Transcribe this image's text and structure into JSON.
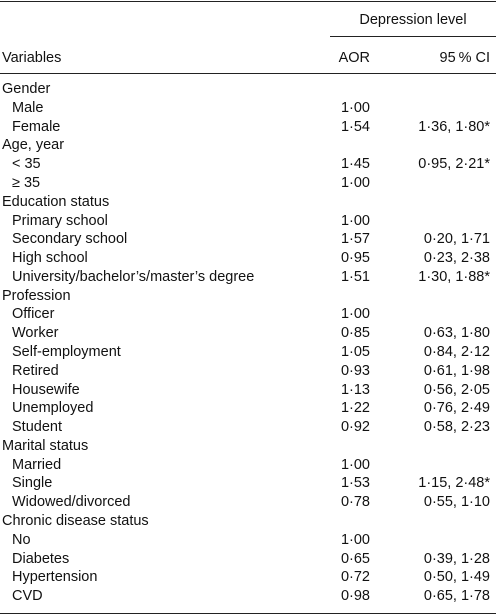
{
  "table": {
    "group_header": "Depression level",
    "columns": [
      "Variables",
      "AOR",
      "95 % CI"
    ],
    "groups": [
      {
        "title": "Gender",
        "rows": [
          [
            "Male",
            "1·00"
          ],
          [
            "Female",
            "1·54",
            "1·36, 1·80*"
          ]
        ]
      },
      {
        "title": "Age, year",
        "rows": [
          [
            "< 35",
            "1·45",
            "0·95, 2·21*"
          ],
          [
            "≥ 35",
            "1·00"
          ]
        ]
      },
      {
        "title": "Education status",
        "rows": [
          [
            "Primary school",
            "1·00"
          ],
          [
            "Secondary school",
            "1·57",
            "0·20, 1·71"
          ],
          [
            "High school",
            "0·95",
            "0·23, 2·38"
          ],
          [
            "University/bachelor’s/master’s degree",
            "1·51",
            "1·30, 1·88*"
          ]
        ]
      },
      {
        "title": "Profession",
        "rows": [
          [
            "Officer",
            "1·00"
          ],
          [
            "Worker",
            "0·85",
            "0·63, 1·80"
          ],
          [
            "Self-employment",
            "1·05",
            "0·84, 2·12"
          ],
          [
            "Retired",
            "0·93",
            "0·61, 1·98"
          ],
          [
            "Housewife",
            "1·13",
            "0·56, 2·05"
          ],
          [
            "Unemployed",
            "1·22",
            "0·76, 2·49"
          ],
          [
            "Student",
            "0·92",
            "0·58, 2·23"
          ]
        ]
      },
      {
        "title": "Marital status",
        "rows": [
          [
            "Married",
            "1·00"
          ],
          [
            "Single",
            "1·53",
            "1·15, 2·48*"
          ],
          [
            "Widowed/divorced",
            "0·78",
            "0·55, 1·10"
          ]
        ]
      },
      {
        "title": "Chronic disease status",
        "rows": [
          [
            "No",
            "1·00"
          ],
          [
            "Diabetes",
            "0·65",
            "0·39, 1·28"
          ],
          [
            "Hypertension",
            "0·72",
            "0·50, 1·49"
          ],
          [
            "CVD",
            "0·98",
            "0·65, 1·78"
          ]
        ]
      }
    ]
  }
}
